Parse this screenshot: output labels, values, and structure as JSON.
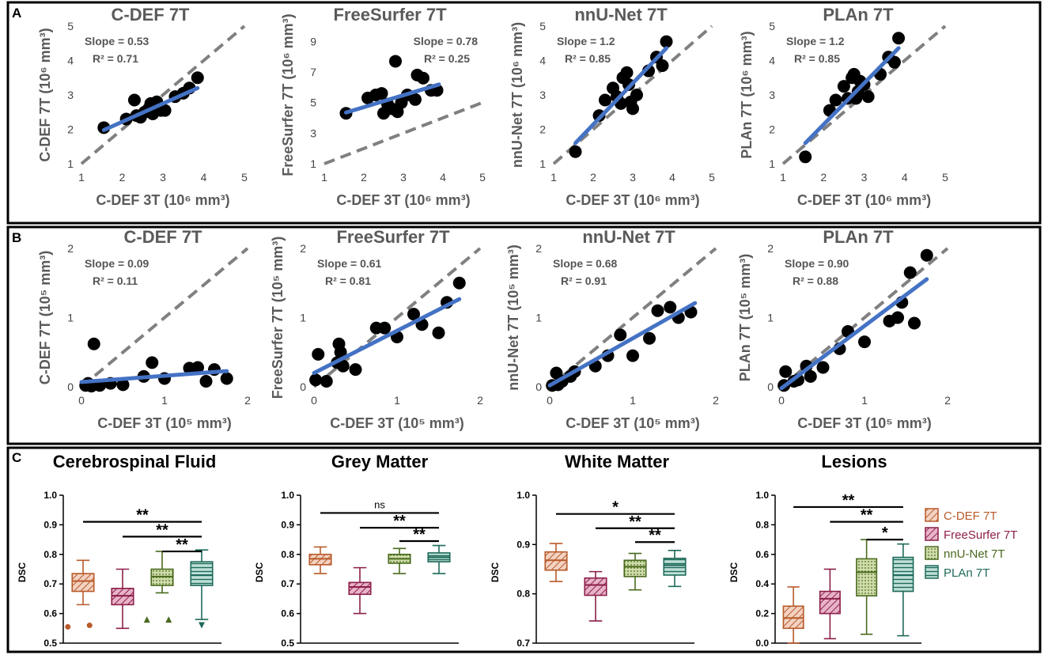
{
  "panel_labels": [
    "A",
    "B",
    "C"
  ],
  "legend": [
    {
      "name": "C-DEF 7T",
      "color": "#b85a2a",
      "fill": "#f3d2c2",
      "pattern": "diag"
    },
    {
      "name": "FreeSurfer 7T",
      "color": "#8c1f4a",
      "fill": "#e8b3c8",
      "pattern": "diag"
    },
    {
      "name": "nnU-Net 7T",
      "color": "#4a6a1e",
      "fill": "#cfdcaa",
      "pattern": "dots"
    },
    {
      "name": "PLAn 7T",
      "color": "#1e6a5a",
      "fill": "#bfe0d8",
      "pattern": "hlines"
    }
  ],
  "chart_data": [
    {
      "id": "A1",
      "type": "scatter",
      "title": "C-DEF 7T",
      "xlabel": "C-DEF 3T (10⁶ mm³)",
      "ylabel": "C-DEF 7T (10⁶ mm³)",
      "xlim": [
        1,
        5
      ],
      "ylim": [
        1,
        5
      ],
      "xticks": [
        1,
        2,
        3,
        4,
        5
      ],
      "yticks": [
        1,
        2,
        3,
        4,
        5
      ],
      "slope_text": "Slope = 0.53",
      "r2_text": "R² = 0.71",
      "stats_pos": "top-left",
      "fit": {
        "slope": 0.53,
        "x0": 1.55,
        "x1": 3.85,
        "y_at_x0": 1.98
      },
      "identity": [
        1,
        5
      ],
      "points": [
        [
          1.55,
          2.05
        ],
        [
          2.1,
          2.3
        ],
        [
          2.3,
          2.85
        ],
        [
          2.35,
          2.4
        ],
        [
          2.45,
          2.35
        ],
        [
          2.55,
          2.5
        ],
        [
          2.65,
          2.6
        ],
        [
          2.7,
          2.75
        ],
        [
          2.75,
          2.45
        ],
        [
          2.85,
          2.8
        ],
        [
          2.95,
          2.55
        ],
        [
          3.05,
          2.55
        ],
        [
          3.3,
          2.95
        ],
        [
          3.5,
          3.05
        ],
        [
          3.65,
          3.2
        ],
        [
          3.85,
          3.5
        ]
      ]
    },
    {
      "id": "A2",
      "type": "scatter",
      "title": "FreeSurfer 7T",
      "xlabel": "C-DEF 3T (10⁶ mm³)",
      "ylabel": "FreeSurfer 7T (10⁶ mm³)",
      "xlim": [
        1,
        5
      ],
      "ylim": [
        1,
        10
      ],
      "xticks": [
        1,
        2,
        3,
        4,
        5
      ],
      "yticks": [
        1,
        3,
        5,
        7,
        9
      ],
      "slope_text": "Slope = 0.78",
      "r2_text": "R² = 0.25",
      "stats_pos": "top-right",
      "fit": {
        "slope": 0.78,
        "x0": 1.55,
        "x1": 3.9,
        "y_at_x0": 4.35
      },
      "identity": [
        1,
        5
      ],
      "points": [
        [
          1.55,
          4.3
        ],
        [
          2.1,
          5.3
        ],
        [
          2.3,
          5.5
        ],
        [
          2.5,
          4.3
        ],
        [
          2.6,
          4.9
        ],
        [
          2.7,
          4.6
        ],
        [
          2.8,
          7.7
        ],
        [
          2.85,
          4.4
        ],
        [
          2.95,
          5.0
        ],
        [
          3.1,
          5.5
        ],
        [
          3.3,
          5.2
        ],
        [
          3.35,
          6.8
        ],
        [
          3.5,
          6.6
        ],
        [
          3.7,
          5.8
        ],
        [
          3.85,
          5.8
        ],
        [
          2.45,
          5.6
        ]
      ]
    },
    {
      "id": "A3",
      "type": "scatter",
      "title": "nnU-Net 7T",
      "xlabel": "C-DEF 3T (10⁶ mm³)",
      "ylabel": "nnU-Net 7T (10⁶ mm³)",
      "xlim": [
        1,
        5
      ],
      "ylim": [
        1,
        5
      ],
      "xticks": [
        1,
        2,
        3,
        4,
        5
      ],
      "yticks": [
        1,
        2,
        3,
        4,
        5
      ],
      "slope_text": "Slope = 1.2",
      "r2_text": "R² = 0.85",
      "stats_pos": "top-left",
      "fit": {
        "slope": 1.2,
        "x0": 1.55,
        "x1": 3.85,
        "y_at_x0": 1.6
      },
      "identity": [
        1,
        5
      ],
      "points": [
        [
          1.55,
          1.35
        ],
        [
          2.15,
          2.4
        ],
        [
          2.3,
          2.85
        ],
        [
          2.5,
          3.2
        ],
        [
          2.6,
          2.95
        ],
        [
          2.7,
          2.75
        ],
        [
          2.75,
          3.5
        ],
        [
          2.85,
          3.65
        ],
        [
          2.9,
          3.3
        ],
        [
          2.95,
          2.8
        ],
        [
          3.0,
          2.6
        ],
        [
          3.1,
          3.0
        ],
        [
          3.4,
          3.7
        ],
        [
          3.6,
          4.1
        ],
        [
          3.75,
          3.85
        ],
        [
          3.85,
          4.55
        ]
      ]
    },
    {
      "id": "A4",
      "type": "scatter",
      "title": "PLAn 7T",
      "xlabel": "C-DEF 3T (10⁶ mm³)",
      "ylabel": "PLAn 7T (10⁶ mm³)",
      "xlim": [
        1,
        5
      ],
      "ylim": [
        1,
        5
      ],
      "xticks": [
        1,
        2,
        3,
        4,
        5
      ],
      "yticks": [
        1,
        2,
        3,
        4,
        5
      ],
      "slope_text": "Slope = 1.2",
      "r2_text": "R² = 0.85",
      "stats_pos": "top-left",
      "fit": {
        "slope": 1.2,
        "x0": 1.55,
        "x1": 3.85,
        "y_at_x0": 1.6
      },
      "identity": [
        1,
        5
      ],
      "points": [
        [
          1.55,
          1.2
        ],
        [
          2.15,
          2.55
        ],
        [
          2.3,
          2.85
        ],
        [
          2.5,
          3.25
        ],
        [
          2.6,
          2.9
        ],
        [
          2.7,
          3.5
        ],
        [
          2.75,
          3.6
        ],
        [
          2.8,
          2.9
        ],
        [
          2.9,
          3.4
        ],
        [
          3.0,
          3.3
        ],
        [
          3.1,
          2.95
        ],
        [
          3.4,
          3.6
        ],
        [
          3.6,
          4.1
        ],
        [
          3.75,
          3.95
        ],
        [
          3.85,
          4.65
        ],
        [
          2.85,
          3.1
        ]
      ]
    },
    {
      "id": "B1",
      "type": "scatter",
      "title": "C-DEF 7T",
      "xlabel": "C-DEF 3T (10⁵ mm³)",
      "ylabel": "C-DEF 7T (10⁵ mm³)",
      "xlim": [
        0,
        2
      ],
      "ylim": [
        0,
        2
      ],
      "xticks": [
        0,
        1,
        2
      ],
      "yticks": [
        0,
        1,
        2
      ],
      "slope_text": "Slope = 0.09",
      "r2_text": "R² = 0.11",
      "stats_pos": "top-left",
      "fit": {
        "slope": 0.09,
        "x0": 0.0,
        "x1": 1.75,
        "y_at_x0": 0.07
      },
      "identity": [
        0,
        2
      ],
      "points": [
        [
          0.05,
          0.02
        ],
        [
          0.12,
          0.01
        ],
        [
          0.15,
          0.62
        ],
        [
          0.22,
          0.02
        ],
        [
          0.35,
          0.05
        ],
        [
          0.5,
          0.03
        ],
        [
          0.75,
          0.15
        ],
        [
          0.85,
          0.35
        ],
        [
          1.0,
          0.12
        ],
        [
          1.3,
          0.27
        ],
        [
          1.4,
          0.28
        ],
        [
          1.5,
          0.08
        ],
        [
          1.6,
          0.25
        ],
        [
          1.75,
          0.12
        ],
        [
          0.08,
          0.05
        ]
      ]
    },
    {
      "id": "B2",
      "type": "scatter",
      "title": "FreeSurfer 7T",
      "xlabel": "C-DEF 3T (10⁵ mm³)",
      "ylabel": "FreeSurfer 7T (10⁵ mm³)",
      "xlim": [
        0,
        2
      ],
      "ylim": [
        0,
        2
      ],
      "xticks": [
        0,
        1,
        2
      ],
      "yticks": [
        0,
        1,
        2
      ],
      "slope_text": "Slope = 0.61",
      "r2_text": "R² = 0.81",
      "stats_pos": "top-left",
      "fit": {
        "slope": 0.61,
        "x0": 0.0,
        "x1": 1.75,
        "y_at_x0": 0.2
      },
      "identity": [
        0,
        2
      ],
      "points": [
        [
          0.02,
          0.1
        ],
        [
          0.05,
          0.47
        ],
        [
          0.15,
          0.08
        ],
        [
          0.3,
          0.62
        ],
        [
          0.32,
          0.5
        ],
        [
          0.35,
          0.3
        ],
        [
          0.5,
          0.25
        ],
        [
          0.75,
          0.85
        ],
        [
          0.85,
          0.85
        ],
        [
          1.0,
          0.72
        ],
        [
          1.2,
          1.05
        ],
        [
          1.3,
          0.9
        ],
        [
          1.5,
          0.78
        ],
        [
          1.6,
          1.22
        ],
        [
          1.75,
          1.5
        ],
        [
          0.28,
          0.35
        ]
      ]
    },
    {
      "id": "B3",
      "type": "scatter",
      "title": "nnU-Net 7T",
      "xlabel": "C-DEF 3T (10⁵ mm³)",
      "ylabel": "nnU-Net 7T (10⁵ mm³)",
      "xlim": [
        0,
        2
      ],
      "ylim": [
        0,
        2
      ],
      "xticks": [
        0,
        1,
        2
      ],
      "yticks": [
        0,
        1,
        2
      ],
      "slope_text": "Slope = 0.68",
      "r2_text": "R² = 0.91",
      "stats_pos": "top-left",
      "fit": {
        "slope": 0.68,
        "x0": 0.0,
        "x1": 1.75,
        "y_at_x0": 0.02
      },
      "identity": [
        0,
        2
      ],
      "points": [
        [
          0.03,
          0.02
        ],
        [
          0.08,
          0.2
        ],
        [
          0.1,
          0.03
        ],
        [
          0.25,
          0.15
        ],
        [
          0.3,
          0.22
        ],
        [
          0.55,
          0.3
        ],
        [
          0.7,
          0.45
        ],
        [
          0.85,
          0.75
        ],
        [
          1.0,
          0.45
        ],
        [
          1.2,
          0.7
        ],
        [
          1.3,
          1.1
        ],
        [
          1.45,
          1.15
        ],
        [
          1.55,
          1.0
        ],
        [
          1.7,
          1.08
        ],
        [
          0.15,
          0.08
        ]
      ]
    },
    {
      "id": "B4",
      "type": "scatter",
      "title": "PLAn 7T",
      "xlabel": "C-DEF 3T (10⁵ mm³)",
      "ylabel": "PLAn 7T (10⁵ mm³)",
      "xlim": [
        0,
        2
      ],
      "ylim": [
        0,
        2
      ],
      "xticks": [
        0,
        1,
        2
      ],
      "yticks": [
        0,
        1,
        2
      ],
      "slope_text": "Slope = 0.90",
      "r2_text": "R² = 0.88",
      "stats_pos": "top-left",
      "fit": {
        "slope": 0.9,
        "x0": 0.0,
        "x1": 1.75,
        "y_at_x0": -0.02
      },
      "identity": [
        0,
        2
      ],
      "points": [
        [
          0.03,
          0.02
        ],
        [
          0.05,
          0.22
        ],
        [
          0.15,
          0.08
        ],
        [
          0.3,
          0.3
        ],
        [
          0.35,
          0.15
        ],
        [
          0.5,
          0.28
        ],
        [
          0.7,
          0.55
        ],
        [
          0.8,
          0.8
        ],
        [
          1.0,
          0.65
        ],
        [
          1.3,
          0.95
        ],
        [
          1.4,
          1.0
        ],
        [
          1.45,
          1.22
        ],
        [
          1.55,
          1.65
        ],
        [
          1.6,
          0.92
        ],
        [
          1.75,
          1.9
        ],
        [
          0.2,
          0.1
        ]
      ]
    },
    {
      "id": "C1",
      "type": "box",
      "title": "Cerebrospinal Fluid",
      "ylabel": "DSC",
      "ylim": [
        0.5,
        1.0
      ],
      "yticks": [
        "0.5",
        "0.6",
        "0.7",
        "0.8",
        "0.9",
        "1.0"
      ],
      "ytick_values": [
        0.5,
        0.6,
        0.7,
        0.8,
        0.9,
        1.0
      ],
      "boxes": [
        {
          "series": "C-DEF 7T",
          "min": 0.63,
          "q1": 0.675,
          "median": 0.71,
          "q3": 0.735,
          "max": 0.78,
          "outliers": [
            0.555,
            0.56
          ]
        },
        {
          "series": "FreeSurfer 7T",
          "min": 0.55,
          "q1": 0.63,
          "median": 0.66,
          "q3": 0.685,
          "max": 0.75,
          "outliers": []
        },
        {
          "series": "nnU-Net 7T",
          "min": 0.67,
          "q1": 0.695,
          "median": 0.725,
          "q3": 0.75,
          "max": 0.81,
          "outliers": [
            0.58,
            0.58
          ]
        },
        {
          "series": "PLAn 7T",
          "min": 0.58,
          "q1": 0.695,
          "median": 0.73,
          "q3": 0.775,
          "max": 0.815,
          "outliers": [
            0.56
          ]
        }
      ],
      "brackets": [
        {
          "from": 0,
          "to": 3,
          "y": 0.91,
          "label": "**"
        },
        {
          "from": 1,
          "to": 3,
          "y": 0.86,
          "label": "**"
        },
        {
          "from": 2,
          "to": 3,
          "y": 0.81,
          "label": "**"
        }
      ]
    },
    {
      "id": "C2",
      "type": "box",
      "title": "Grey Matter",
      "ylabel": "DSC",
      "ylim": [
        0.5,
        1.0
      ],
      "yticks": [
        "0.5",
        "0.6",
        "0.7",
        "0.8",
        "0.9",
        "1.0"
      ],
      "ytick_values": [
        0.5,
        0.6,
        0.7,
        0.8,
        0.9,
        1.0
      ],
      "boxes": [
        {
          "series": "C-DEF 7T",
          "min": 0.735,
          "q1": 0.765,
          "median": 0.785,
          "q3": 0.8,
          "max": 0.825,
          "outliers": []
        },
        {
          "series": "FreeSurfer 7T",
          "min": 0.6,
          "q1": 0.665,
          "median": 0.69,
          "q3": 0.705,
          "max": 0.755,
          "outliers": []
        },
        {
          "series": "nnU-Net 7T",
          "min": 0.735,
          "q1": 0.77,
          "median": 0.785,
          "q3": 0.8,
          "max": 0.82,
          "outliers": []
        },
        {
          "series": "PLAn 7T",
          "min": 0.735,
          "q1": 0.775,
          "median": 0.79,
          "q3": 0.805,
          "max": 0.83,
          "outliers": []
        }
      ],
      "brackets": [
        {
          "from": 0,
          "to": 3,
          "y": 0.94,
          "label": "ns"
        },
        {
          "from": 1,
          "to": 3,
          "y": 0.89,
          "label": "**"
        },
        {
          "from": 2,
          "to": 3,
          "y": 0.845,
          "label": "**"
        }
      ]
    },
    {
      "id": "C3",
      "type": "box",
      "title": "White Matter",
      "ylabel": "DSC",
      "ylim": [
        0.7,
        1.0
      ],
      "yticks": [
        "0.7",
        "0.8",
        "0.9",
        "1.0"
      ],
      "ytick_values": [
        0.7,
        0.8,
        0.9,
        1.0
      ],
      "boxes": [
        {
          "series": "C-DEF 7T",
          "min": 0.825,
          "q1": 0.848,
          "median": 0.868,
          "q3": 0.885,
          "max": 0.902,
          "outliers": []
        },
        {
          "series": "FreeSurfer 7T",
          "min": 0.745,
          "q1": 0.797,
          "median": 0.818,
          "q3": 0.832,
          "max": 0.845,
          "outliers": []
        },
        {
          "series": "nnU-Net 7T",
          "min": 0.808,
          "q1": 0.835,
          "median": 0.855,
          "q3": 0.868,
          "max": 0.882,
          "outliers": []
        },
        {
          "series": "PLAn 7T",
          "min": 0.815,
          "q1": 0.838,
          "median": 0.858,
          "q3": 0.872,
          "max": 0.888,
          "outliers": []
        }
      ],
      "brackets": [
        {
          "from": 0,
          "to": 3,
          "y": 0.962,
          "label": "*"
        },
        {
          "from": 1,
          "to": 3,
          "y": 0.933,
          "label": "**"
        },
        {
          "from": 2,
          "to": 3,
          "y": 0.905,
          "label": "**"
        }
      ]
    },
    {
      "id": "C4",
      "type": "box",
      "title": "Lesions",
      "ylabel": "DSC",
      "ylim": [
        0.0,
        1.0
      ],
      "yticks": [
        "0.0",
        "0.2",
        "0.4",
        "0.6",
        "0.8",
        "1.0"
      ],
      "ytick_values": [
        0.0,
        0.2,
        0.4,
        0.6,
        0.8,
        1.0
      ],
      "boxes": [
        {
          "series": "C-DEF 7T",
          "min": 0.0,
          "q1": 0.1,
          "median": 0.17,
          "q3": 0.25,
          "max": 0.38,
          "outliers": []
        },
        {
          "series": "FreeSurfer 7T",
          "min": 0.03,
          "q1": 0.2,
          "median": 0.3,
          "q3": 0.35,
          "max": 0.5,
          "outliers": []
        },
        {
          "series": "nnU-Net 7T",
          "min": 0.06,
          "q1": 0.32,
          "median": 0.48,
          "q3": 0.57,
          "max": 0.7,
          "outliers": []
        },
        {
          "series": "PLAn 7T",
          "min": 0.05,
          "q1": 0.35,
          "median": 0.46,
          "q3": 0.58,
          "max": 0.67,
          "outliers": []
        }
      ],
      "brackets": [
        {
          "from": 0,
          "to": 3,
          "y": 0.92,
          "label": "**"
        },
        {
          "from": 1,
          "to": 3,
          "y": 0.82,
          "label": "**"
        },
        {
          "from": 2,
          "to": 3,
          "y": 0.7,
          "label": "*"
        }
      ]
    }
  ]
}
